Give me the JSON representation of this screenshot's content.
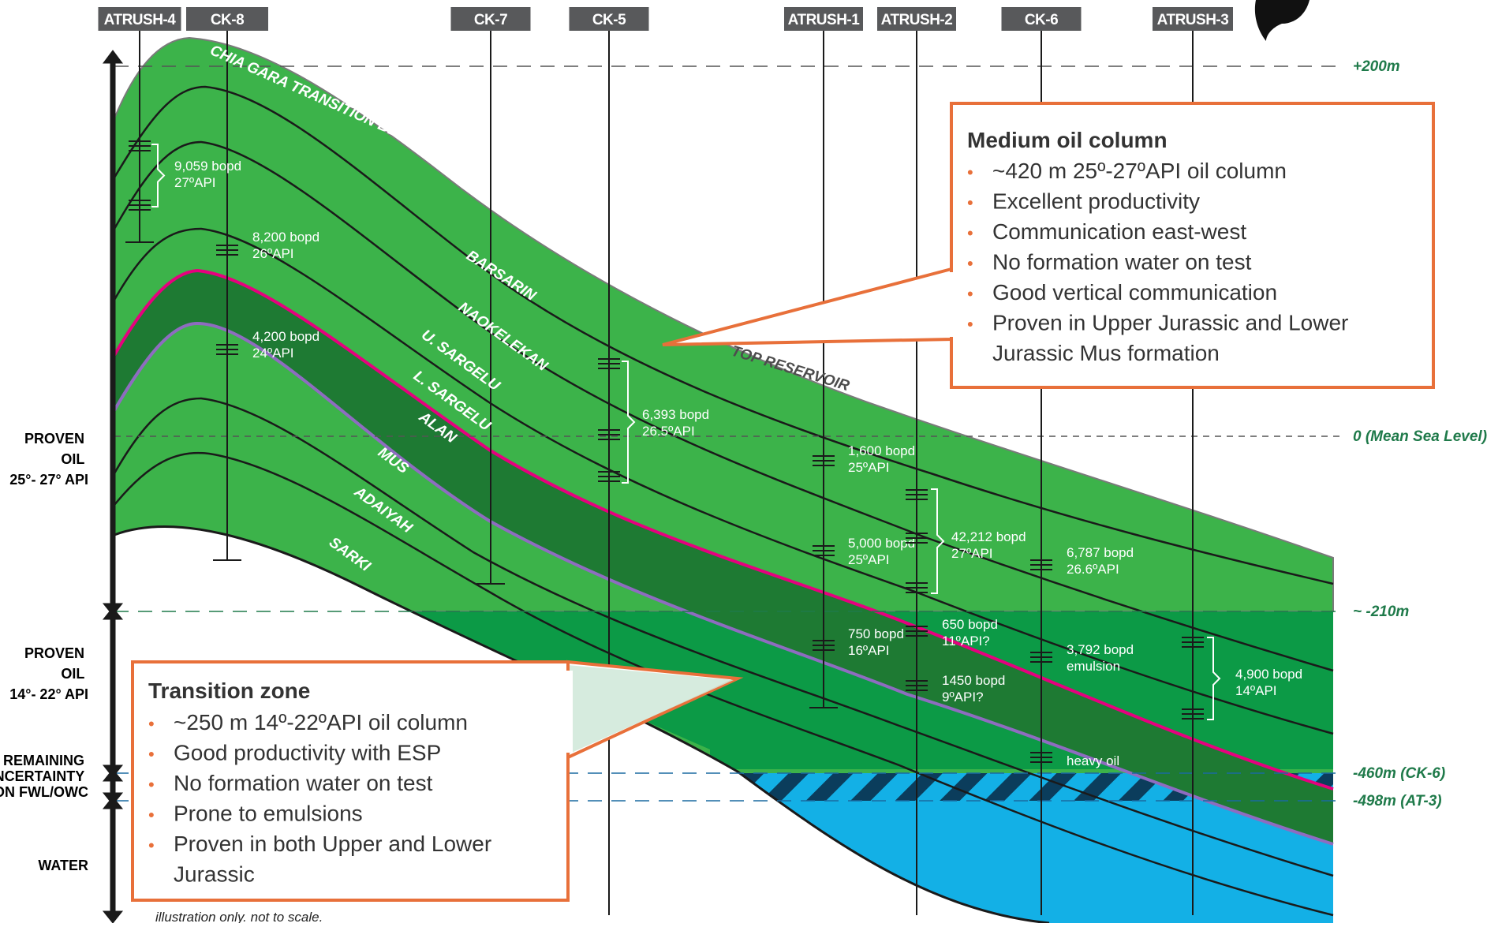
{
  "wells": [
    {
      "id": "atrush4",
      "name": "ATRUSH-4"
    },
    {
      "id": "ck8",
      "name": "CK-8"
    },
    {
      "id": "ck7",
      "name": "CK-7"
    },
    {
      "id": "ck5",
      "name": "CK-5"
    },
    {
      "id": "atrush1",
      "name": "ATRUSH-1"
    },
    {
      "id": "atrush2",
      "name": "ATRUSH-2"
    },
    {
      "id": "ck6",
      "name": "CK-6"
    },
    {
      "id": "atrush3",
      "name": "ATRUSH-3"
    }
  ],
  "formations": {
    "chia_gara": "CHIA GARA TRANSITION BEDS",
    "barsarin": "BARSARIN",
    "naokelekan": "NAOKELEKAN",
    "u_sargelu": "U. SARGELU",
    "l_sargelu": "L. SARGELU",
    "alan": "ALAN",
    "mus": "MUS",
    "adaiyah": "ADAIYAH",
    "sarki": "SARKI",
    "top_reservoir": "TOP RESERVOIR"
  },
  "depths": {
    "plus200": "+200m",
    "msl": "0   (Mean Sea Level)",
    "minus210": "~ -210m",
    "minus460": "-460m (CK-6)",
    "minus498": "-498m  (AT-3)"
  },
  "zones": {
    "proven_oil_light": [
      "PROVEN",
      "OIL",
      "25°- 27° API"
    ],
    "proven_oil_heavy": [
      "PROVEN",
      "OIL",
      "14°- 22° API"
    ],
    "remaining": [
      "REMAINING",
      "UNCERTAINTY",
      "ON FWL/OWC"
    ],
    "water": [
      "WATER"
    ]
  },
  "tests": [
    {
      "id": "t1",
      "lines": [
        "9,059 bopd",
        "27ºAPI"
      ]
    },
    {
      "id": "t2",
      "lines": [
        "8,200 bopd",
        "26ºAPI"
      ]
    },
    {
      "id": "t3",
      "lines": [
        "4,200 bopd",
        "24ºAPI"
      ]
    },
    {
      "id": "t4",
      "lines": [
        "6,393 bopd",
        "26.5ºAPI"
      ]
    },
    {
      "id": "t5",
      "lines": [
        "1,600 bopd",
        "25ºAPI"
      ]
    },
    {
      "id": "t6",
      "lines": [
        "5,000 bopd",
        "25ºAPI"
      ]
    },
    {
      "id": "t7",
      "lines": [
        "42,212 bopd",
        "27ºAPI"
      ]
    },
    {
      "id": "t8",
      "lines": [
        "6,787 bopd",
        "26.6ºAPI"
      ]
    },
    {
      "id": "t9",
      "lines": [
        "750 bopd",
        "16ºAPI"
      ]
    },
    {
      "id": "t10",
      "lines": [
        "650 bopd",
        "11ºAPI?"
      ]
    },
    {
      "id": "t11",
      "lines": [
        "1450 bopd",
        "9ºAPI?"
      ]
    },
    {
      "id": "t12",
      "lines": [
        "3,792 bopd",
        "emulsion"
      ]
    },
    {
      "id": "t13",
      "lines": [
        "4,900 bopd",
        "14ºAPI"
      ]
    },
    {
      "id": "t14",
      "lines": [
        "heavy oil"
      ]
    }
  ],
  "medium_box": {
    "title": "Medium oil column",
    "items": [
      "~420 m 25º-27ºAPI oil column",
      "Excellent productivity",
      "Communication east-west",
      "No formation water on test",
      "Good vertical communication",
      "Proven in Upper Jurassic and Lower",
      "Jurassic Mus formation"
    ]
  },
  "transition_box": {
    "title": "Transition zone",
    "items": [
      "~250 m 14º-22ºAPI oil column",
      "Good productivity with ESP",
      "No formation water on test",
      "Prone to emulsions",
      "Proven in both Upper and Lower",
      "Jurassic"
    ]
  },
  "footnote": "illustration only. not to scale.",
  "colors": {
    "light_oil": "#3cb34a",
    "heavy_oil": "#0c9a46",
    "reservoir_band": "#1e7a33",
    "water": "#13b0e6",
    "callout": "#e8703a",
    "well_box": "#58595b"
  }
}
